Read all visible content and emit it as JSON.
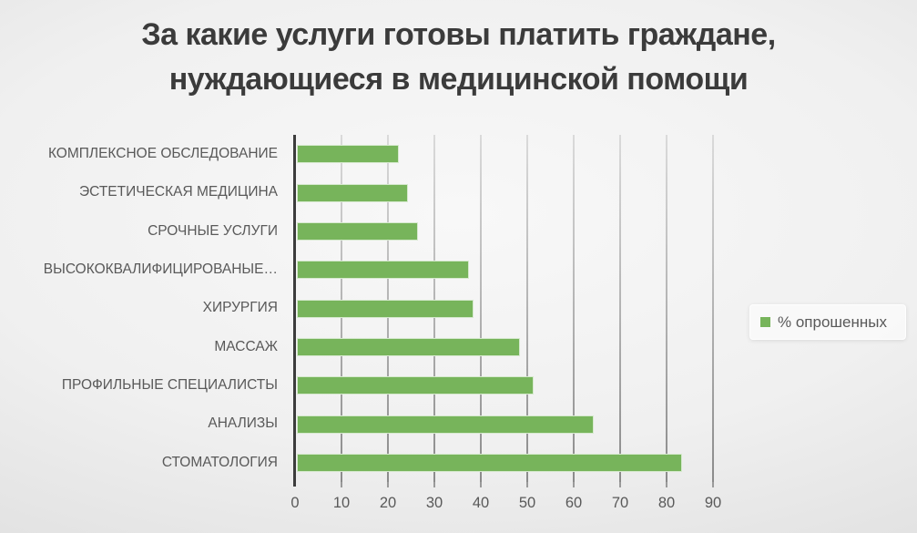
{
  "title": {
    "line1": "За какие услуги готовы платить граждане,",
    "line2": "нуждающиеся в медицинской помощи"
  },
  "legend": {
    "label": "% опрошенных"
  },
  "chart_data": {
    "type": "bar",
    "orientation": "horizontal",
    "title": "За какие услуги готовы платить граждане, нуждающиеся в медицинской помощи",
    "categories": [
      "КОМПЛЕКСНОЕ ОБСЛЕДОВАНИЕ",
      "ЭСТЕТИЧЕСКАЯ МЕДИЦИНА",
      "СРОЧНЫЕ УСЛУГИ",
      "ВЫСОКОКВАЛИФИЦИРОВАНЫЕ…",
      "ХИРУРГИЯ",
      "МАССАЖ",
      "ПРОФИЛЬНЫЕ СПЕЦИАЛИСТЫ",
      "АНАЛИЗЫ",
      "СТОМАТОЛОГИЯ"
    ],
    "series": [
      {
        "name": "% опрошенных",
        "values": [
          22,
          24,
          26,
          37,
          38,
          48,
          51,
          64,
          83
        ]
      }
    ],
    "xlim": [
      0,
      90
    ],
    "x_ticks": [
      0,
      10,
      20,
      30,
      40,
      50,
      60,
      70,
      80,
      90
    ],
    "grid": true,
    "legend_position": "right",
    "bar_color": "#77B45B",
    "axis_color": "#3C3C3C",
    "grid_color": "#9A9A9A",
    "text_color": "#595959",
    "title_color": "#3B3B3B"
  }
}
